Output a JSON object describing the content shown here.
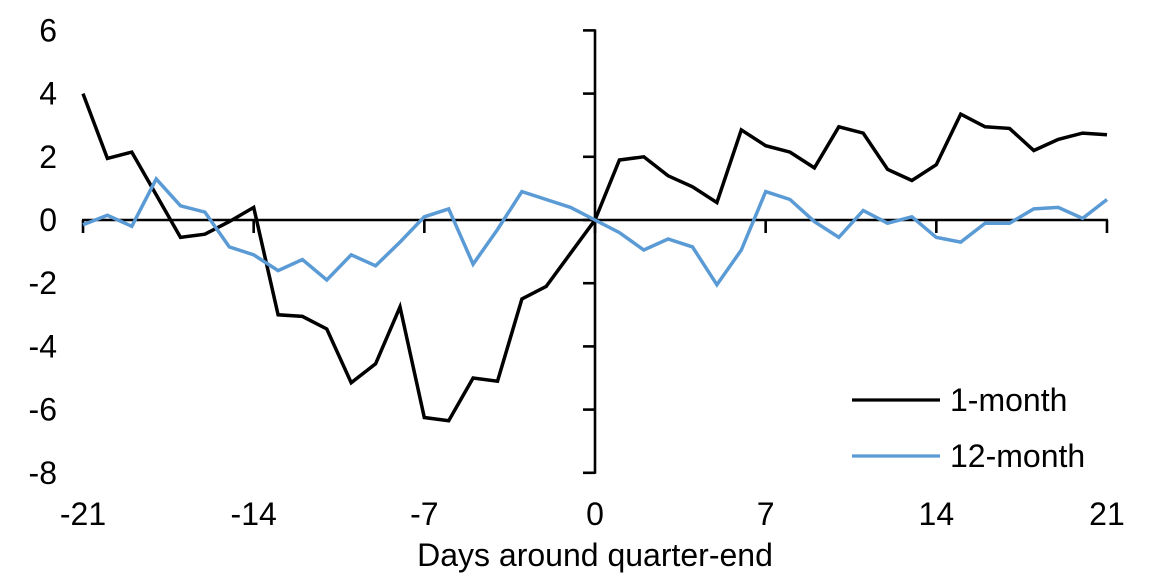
{
  "chart_data": {
    "type": "line",
    "title": "",
    "xlabel": "Days around quarter-end",
    "ylabel": "",
    "xlim": [
      -21,
      21
    ],
    "ylim": [
      -8,
      6
    ],
    "x_ticks": [
      -21,
      -14,
      -7,
      0,
      7,
      14,
      21
    ],
    "y_ticks": [
      6,
      4,
      2,
      0,
      -2,
      -4,
      -6,
      -8
    ],
    "grid": false,
    "legend_position": "lower right",
    "x": [
      -21,
      -20,
      -19,
      -18,
      -17,
      -16,
      -15,
      -14,
      -13,
      -12,
      -11,
      -10,
      -9,
      -8,
      -7,
      -6,
      -5,
      -4,
      -3,
      -2,
      -1,
      0,
      1,
      2,
      3,
      4,
      5,
      6,
      7,
      8,
      9,
      10,
      11,
      12,
      13,
      14,
      15,
      16,
      17,
      18,
      19,
      20,
      21
    ],
    "series": [
      {
        "name": "1-month",
        "color": "#000000",
        "values": [
          4.0,
          1.95,
          2.15,
          0.8,
          -0.55,
          -0.45,
          -0.05,
          0.4,
          -3.0,
          -3.05,
          -3.45,
          -5.15,
          -4.55,
          -2.75,
          -6.25,
          -6.35,
          -5.0,
          -5.1,
          -2.5,
          -2.1,
          -1.05,
          0.0,
          1.9,
          2.0,
          1.4,
          1.05,
          0.55,
          2.85,
          2.35,
          2.15,
          1.65,
          2.95,
          2.75,
          1.6,
          1.25,
          1.75,
          3.35,
          2.95,
          2.9,
          2.2,
          2.55,
          2.75,
          2.7
        ]
      },
      {
        "name": "12-month",
        "color": "#5B9BD5",
        "values": [
          -0.15,
          0.15,
          -0.2,
          1.3,
          0.45,
          0.25,
          -0.85,
          -1.1,
          -1.6,
          -1.25,
          -1.9,
          -1.1,
          -1.45,
          -0.7,
          0.1,
          0.35,
          -1.4,
          -0.3,
          0.9,
          0.65,
          0.4,
          0.0,
          -0.4,
          -0.95,
          -0.6,
          -0.85,
          -2.05,
          -0.95,
          0.9,
          0.65,
          -0.05,
          -0.55,
          0.3,
          -0.1,
          0.1,
          -0.55,
          -0.7,
          -0.1,
          -0.1,
          0.35,
          0.4,
          0.05,
          0.65
        ]
      }
    ]
  },
  "colors": {
    "axis": "#000000",
    "background": "#ffffff",
    "series_1": "#000000",
    "series_2": "#5B9BD5"
  }
}
